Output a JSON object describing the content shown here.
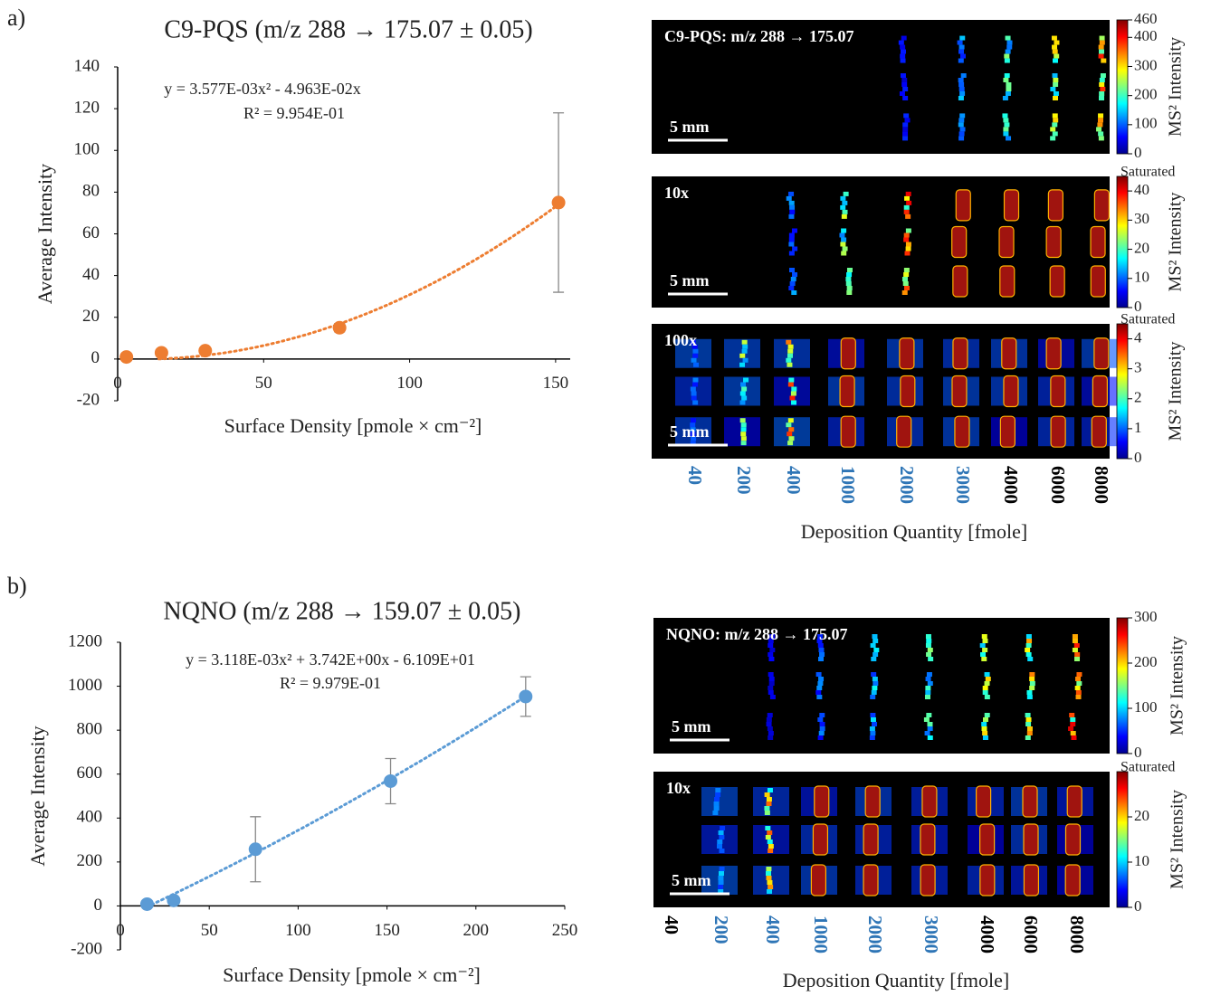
{
  "panel_labels": [
    "a)",
    "b)"
  ],
  "chart_data": [
    {
      "type": "scatter",
      "title": "C9-PQS (m/z 288 → 175.07 ± 0.05)",
      "xlabel": "Surface Density [pmole × cm⁻²]",
      "ylabel": "Average Intensity",
      "x": [
        3,
        15,
        30,
        76,
        151
      ],
      "values": [
        1,
        3,
        4,
        15,
        75
      ],
      "errors": [
        0.5,
        1,
        1.5,
        2,
        43
      ],
      "color": "#ed7d31",
      "xlim": [
        0,
        155
      ],
      "ylim": [
        -20,
        140
      ],
      "xticks": [
        0,
        50,
        100,
        150
      ],
      "yticks": [
        -20,
        0,
        20,
        40,
        60,
        80,
        100,
        120,
        140
      ],
      "trendline": {
        "coefficients": [
          0.003577,
          -0.04963
        ],
        "equation": "y = 3.577E-03x² - 4.963E-02x",
        "r_squared": "R² = 9.954E-01"
      }
    },
    {
      "type": "scatter",
      "title": "NQNO (m/z 288 → 159.07 ± 0.05)",
      "xlabel": "Surface Density [pmole × cm⁻²]",
      "ylabel": "Average Intensity",
      "x": [
        15,
        30,
        76,
        152,
        228
      ],
      "values": [
        8,
        25,
        258,
        568,
        953
      ],
      "errors": [
        5,
        5,
        148,
        103,
        90
      ],
      "color": "#5b9bd5",
      "xlim": [
        0,
        250
      ],
      "ylim": [
        -200,
        1200
      ],
      "xticks": [
        0,
        50,
        100,
        150,
        200,
        250
      ],
      "yticks": [
        -200,
        0,
        200,
        400,
        600,
        800,
        1000,
        1200
      ],
      "trendline": {
        "coefficients": [
          0.003118,
          3.742,
          -61.09
        ],
        "equation": "y = 3.118E-03x² + 3.742E+00x - 6.109E+01",
        "r_squared": "R² = 9.979E-01"
      }
    }
  ],
  "images": [
    {
      "xlabel": "Deposition Quantity [fmole]",
      "categories": [
        "40",
        "200",
        "400",
        "1000",
        "2000",
        "3000",
        "4000",
        "6000",
        "8000"
      ],
      "category_colors": [
        "#2e75b6",
        "#2e75b6",
        "#2e75b6",
        "#2e75b6",
        "#2e75b6",
        "#2e75b6",
        "#000000",
        "#000000",
        "#000000"
      ],
      "strips": [
        {
          "label": "C9-PQS: m/z 288 → 175.07",
          "scale_bar": "5 mm",
          "colorbar": {
            "label": "MS² Intensity",
            "clim": [
              0,
              460
            ],
            "ticks": [
              0,
              100,
              200,
              300,
              400,
              460
            ]
          }
        },
        {
          "label": "10x",
          "scale_bar": "5 mm",
          "colorbar": {
            "label": "MS² Intensity",
            "clim": [
              0,
              45
            ],
            "ticks": [
              0,
              10,
              20,
              30,
              40
            ],
            "top_label": "Saturated"
          }
        },
        {
          "label": "100x",
          "scale_bar": "5 mm",
          "colorbar": {
            "label": "MS² Intensity",
            "clim": [
              0,
              4.5
            ],
            "ticks": [
              0,
              1,
              2,
              3,
              4
            ],
            "top_label": "Saturated"
          }
        }
      ]
    },
    {
      "xlabel": "Deposition Quantity [fmole]",
      "categories": [
        "40",
        "200",
        "400",
        "1000",
        "2000",
        "3000",
        "4000",
        "6000",
        "8000"
      ],
      "category_colors": [
        "#000000",
        "#2e75b6",
        "#2e75b6",
        "#2e75b6",
        "#2e75b6",
        "#2e75b6",
        "#000000",
        "#000000",
        "#000000"
      ],
      "strips": [
        {
          "label": "NQNO: m/z 288 → 175.07",
          "scale_bar": "5 mm",
          "colorbar": {
            "label": "MS² Intensity",
            "clim": [
              0,
              300
            ],
            "ticks": [
              0,
              100,
              200,
              300
            ]
          }
        },
        {
          "label": "10x",
          "scale_bar": "5 mm",
          "colorbar": {
            "label": "MS² Intensity",
            "clim": [
              0,
              30
            ],
            "ticks": [
              0,
              10,
              20
            ],
            "top_label": "Saturated"
          }
        }
      ]
    }
  ]
}
